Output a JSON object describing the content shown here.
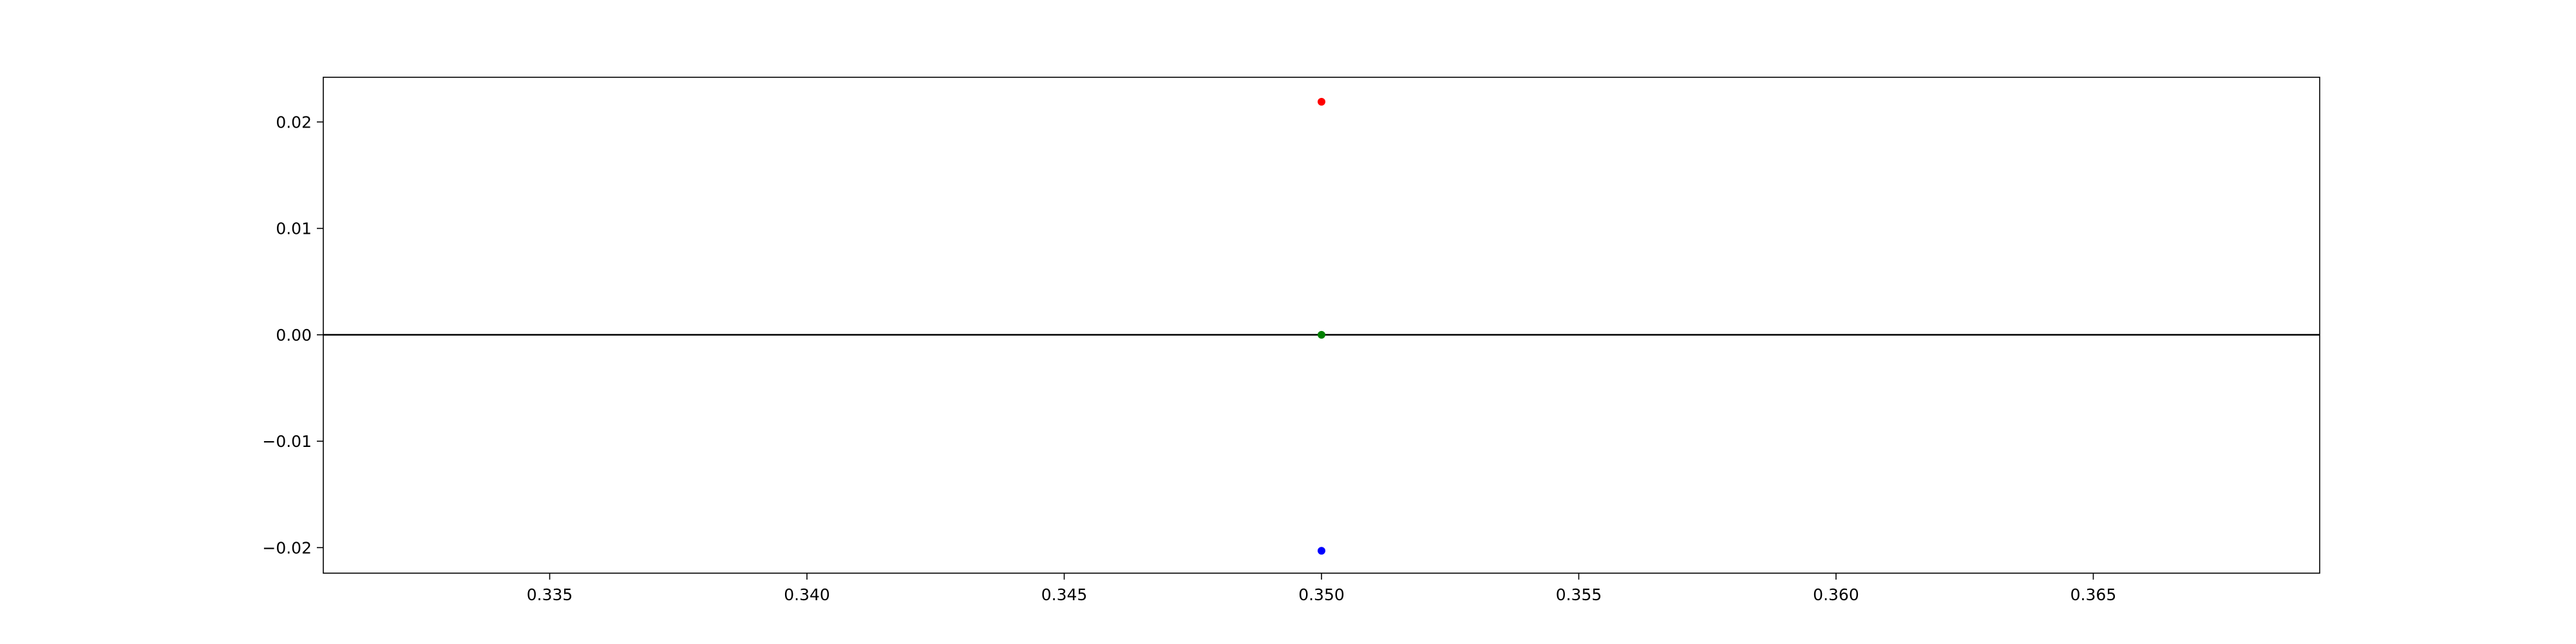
{
  "chart_data": {
    "type": "scatter",
    "title": "",
    "xlabel": "",
    "ylabel": "",
    "xlim": [
      0.3306,
      0.3694
    ],
    "ylim": [
      -0.0224,
      0.0242
    ],
    "grid": false,
    "xticks": [
      0.335,
      0.34,
      0.345,
      0.35,
      0.355,
      0.36,
      0.365
    ],
    "xtick_labels": [
      "0.335",
      "0.340",
      "0.345",
      "0.350",
      "0.355",
      "0.360",
      "0.365"
    ],
    "yticks": [
      0.02,
      0.01,
      0.0,
      -0.01,
      -0.02
    ],
    "ytick_labels": [
      "0.02",
      "0.01",
      "0.00",
      "−0.01",
      "−0.02"
    ],
    "hlines": [
      {
        "y": 0.0,
        "color": "#000000"
      }
    ],
    "series": [
      {
        "color": "#ff0000",
        "points": [
          {
            "x": 0.35,
            "y": 0.0219
          }
        ]
      },
      {
        "color": "#008000",
        "points": [
          {
            "x": 0.35,
            "y": 0.0
          }
        ]
      },
      {
        "color": "#0000ff",
        "points": [
          {
            "x": 0.35,
            "y": -0.0203
          }
        ]
      }
    ]
  }
}
